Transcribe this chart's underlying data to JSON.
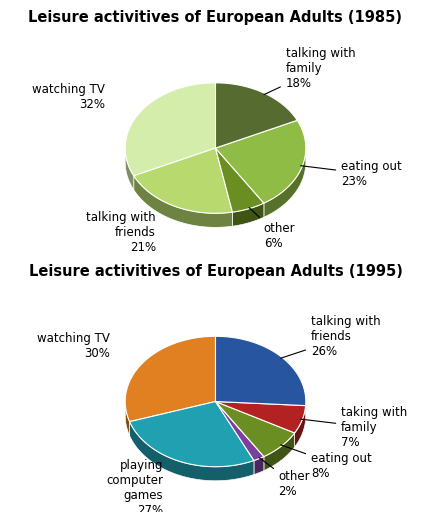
{
  "chart1": {
    "title": "Leisure activitives of European Adults (1985)",
    "slices": [
      {
        "label": "talking with\nfamily",
        "pct": "18%",
        "value": 18,
        "color": "#556b2f"
      },
      {
        "label": "eating out",
        "pct": "23%",
        "value": 23,
        "color": "#8fbc45"
      },
      {
        "label": "other",
        "pct": "6%",
        "value": 6,
        "color": "#6b8e23"
      },
      {
        "label": "talking with\nfriends",
        "pct": "21%",
        "value": 21,
        "color": "#b8d96e"
      },
      {
        "label": "watching TV",
        "pct": "32%",
        "value": 32,
        "color": "#d4edaa"
      }
    ],
    "startangle": 90
  },
  "chart2": {
    "title": "Leisure activitives of European Adults (1995)",
    "slices": [
      {
        "label": "talking with\nfriends",
        "pct": "26%",
        "value": 26,
        "color": "#2855a0"
      },
      {
        "label": "taking with\nfamily",
        "pct": "7%",
        "value": 7,
        "color": "#b22222"
      },
      {
        "label": "eating out",
        "pct": "8%",
        "value": 8,
        "color": "#6b8e23"
      },
      {
        "label": "other",
        "pct": "2%",
        "value": 2,
        "color": "#7b3fa0"
      },
      {
        "label": "playing\ncomputer\ngames",
        "pct": "27%",
        "value": 27,
        "color": "#20a0b0"
      },
      {
        "label": "watching TV",
        "pct": "30%",
        "value": 30,
        "color": "#e08020"
      }
    ],
    "startangle": 90
  },
  "title_fontsize": 10.5,
  "label_fontsize": 8.5,
  "bg_color": "#ffffff"
}
